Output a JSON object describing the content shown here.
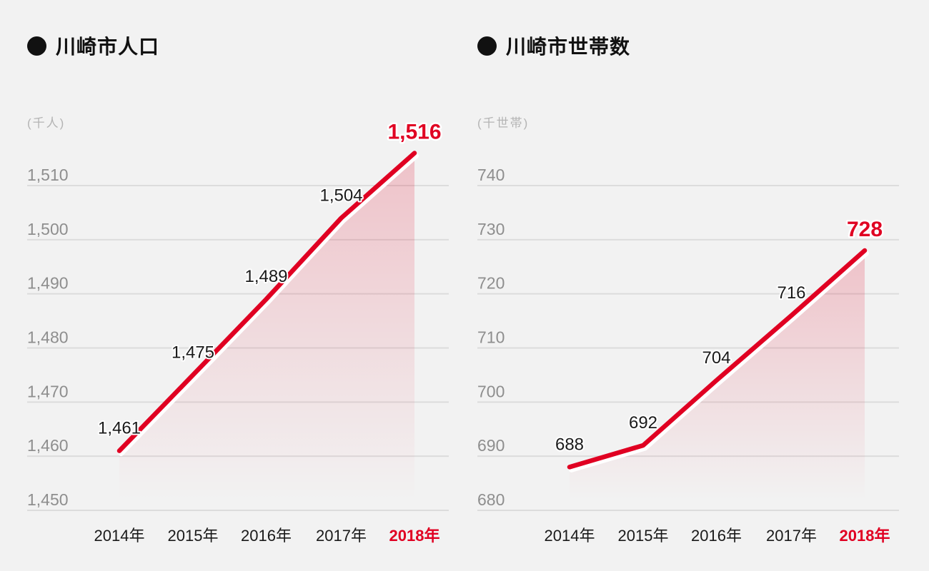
{
  "page": {
    "background": "#f2f2f2"
  },
  "colors": {
    "accent_red": "#e00022",
    "title_color": "#111111",
    "label_color": "#1a1a1a",
    "axis_tick_color": "#8e8e8e",
    "unit_color": "#b4b4b4",
    "gridline_color": "#dcdcdc",
    "line_underlay": "#ffffff"
  },
  "chart_data": [
    {
      "type": "line",
      "title": "川崎市人口",
      "unit_label": "(千人)",
      "categories": [
        "2014年",
        "2015年",
        "2016年",
        "2017年",
        "2018年"
      ],
      "values": [
        1461,
        1475,
        1489,
        1504,
        1516
      ],
      "value_labels": [
        "1,461",
        "1,475",
        "1,489",
        "1,504",
        "1,516"
      ],
      "y_tick_values": [
        1510,
        1500,
        1490,
        1480,
        1470,
        1460,
        1450
      ],
      "y_tick_labels": [
        "1,510",
        "1,500",
        "1,490",
        "1,480",
        "1,470",
        "1,460",
        "1,450"
      ],
      "ylim": [
        1450,
        1516
      ],
      "highlight_index": 4,
      "grid": true,
      "legend": "none"
    },
    {
      "type": "line",
      "title": "川崎市世帯数",
      "unit_label": "(千世帯)",
      "categories": [
        "2014年",
        "2015年",
        "2016年",
        "2017年",
        "2018年"
      ],
      "values": [
        688,
        692,
        704,
        716,
        728
      ],
      "value_labels": [
        "688",
        "692",
        "704",
        "716",
        "728"
      ],
      "y_tick_values": [
        740,
        730,
        720,
        710,
        700,
        690,
        680
      ],
      "y_tick_labels": [
        "740",
        "730",
        "720",
        "710",
        "700",
        "690",
        "680"
      ],
      "ylim": [
        680,
        740
      ],
      "highlight_index": 4,
      "grid": true,
      "legend": "none"
    }
  ]
}
